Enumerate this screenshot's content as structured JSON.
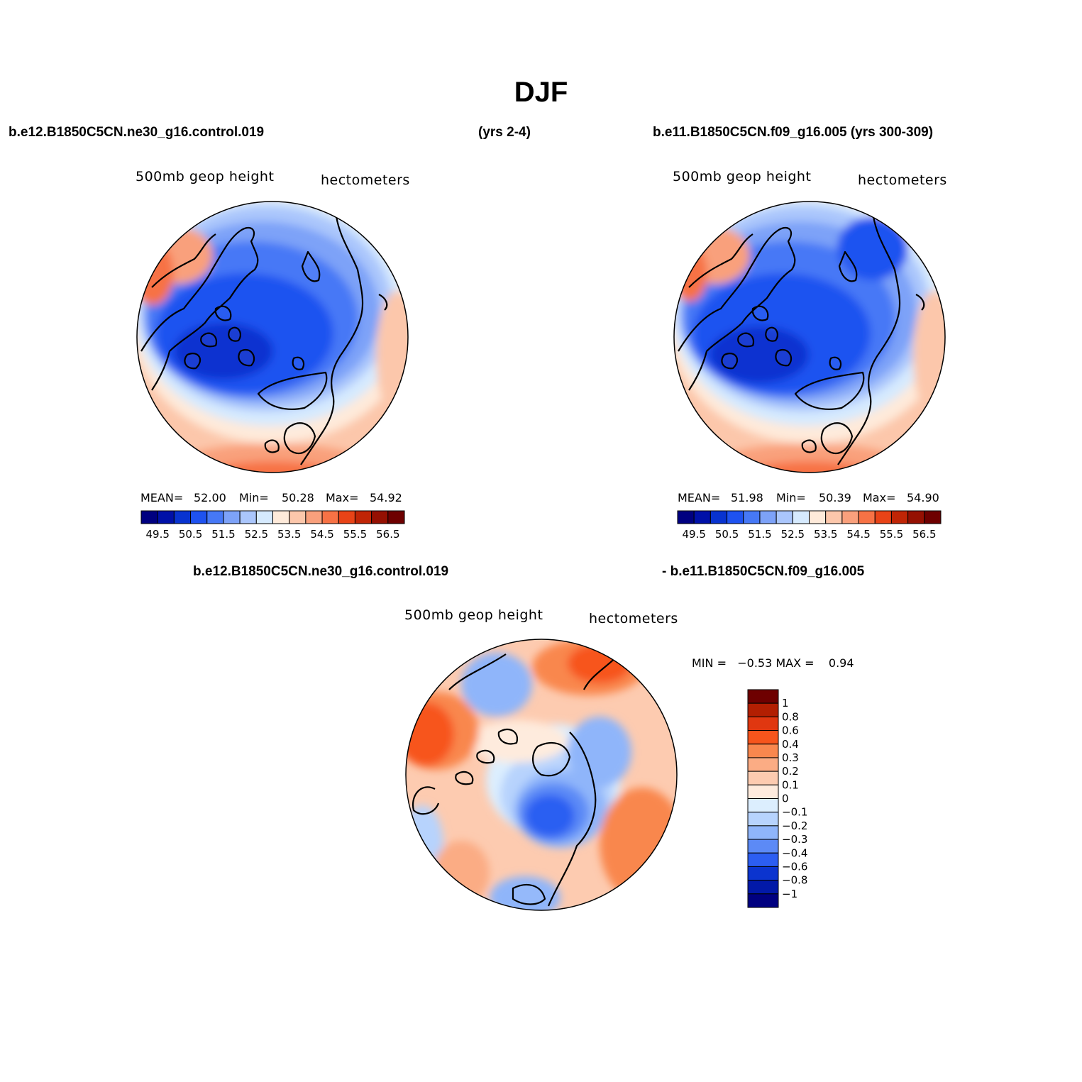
{
  "title": "DJF",
  "top_left_header": "b.e12.B1850C5CN.ne30_g16.control.019",
  "top_center_header": "(yrs 2-4)",
  "top_right_header": "b.e11.B1850C5CN.f09_g16.005 (yrs 300-309)",
  "diff_header_left": "b.e12.B1850C5CN.ne30_g16.control.019",
  "diff_header_right": "- b.e11.B1850C5CN.f09_g16.005",
  "panel1": {
    "variable": "500mb geop height",
    "units": "hectometers",
    "mean_label": "MEAN=",
    "mean_value": "52.00",
    "min_label": "Min=",
    "min_value": "50.28",
    "max_label": "Max=",
    "max_value": "54.92"
  },
  "panel2": {
    "variable": "500mb geop height",
    "units": "hectometers",
    "mean_label": "MEAN=",
    "mean_value": "51.98",
    "min_label": "Min=",
    "min_value": "50.39",
    "max_label": "Max=",
    "max_value": "54.90"
  },
  "panel3": {
    "variable": "500mb geop height",
    "units": "hectometers",
    "min_max_text": "MIN =   −0.53 MAX =    0.94"
  },
  "colorbar_top": {
    "colors": [
      "#000080",
      "#0010a8",
      "#0833d0",
      "#1e52f0",
      "#4678f6",
      "#7da2f8",
      "#aac6fc",
      "#d6eafe",
      "#feeada",
      "#fcc7ab",
      "#f9a07c",
      "#f77245",
      "#e84317",
      "#c02506",
      "#951002",
      "#6e0000"
    ],
    "labels": [
      "49.5",
      "50.5",
      "51.5",
      "52.5",
      "53.5",
      "54.5",
      "55.5",
      "56.5"
    ]
  },
  "colorbar_diff": {
    "colors": [
      "#6e0000",
      "#b21f02",
      "#e03710",
      "#f7551c",
      "#f9874e",
      "#fbac84",
      "#fdcbb0",
      "#feebdd",
      "#dceefe",
      "#b7d3fd",
      "#8fb5fa",
      "#5c8af6",
      "#2c5ef2",
      "#0b34cf",
      "#0219a8",
      "#000080"
    ],
    "labels": [
      "1",
      "0.8",
      "0.6",
      "0.4",
      "0.3",
      "0.2",
      "0.1",
      "0",
      "−0.1",
      "−0.2",
      "−0.3",
      "−0.4",
      "−0.6",
      "−0.8",
      "−1"
    ]
  }
}
